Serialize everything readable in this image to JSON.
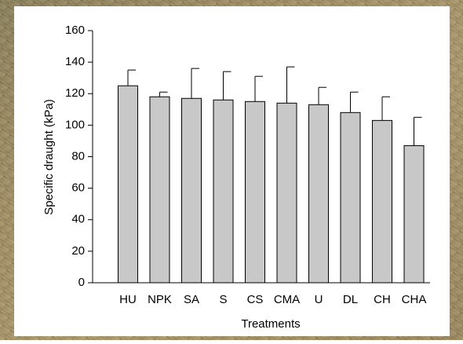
{
  "chart_data": {
    "type": "bar",
    "xlabel": "Treatments",
    "ylabel": "Specific draught (kPa)",
    "categories": [
      "HU",
      "NPK",
      "SA",
      "S",
      "CS",
      "CMA",
      "U",
      "DL",
      "CH",
      "CHA"
    ],
    "values": [
      125,
      118,
      117,
      116,
      115,
      114,
      113,
      108,
      103,
      87
    ],
    "errors": [
      10,
      3,
      19,
      18,
      16,
      23,
      11,
      13,
      15,
      18
    ],
    "color": "#c8c8c8",
    "ylim": [
      0,
      160
    ],
    "yticks": [
      0,
      20,
      40,
      60,
      80,
      100,
      120,
      140,
      160
    ]
  }
}
